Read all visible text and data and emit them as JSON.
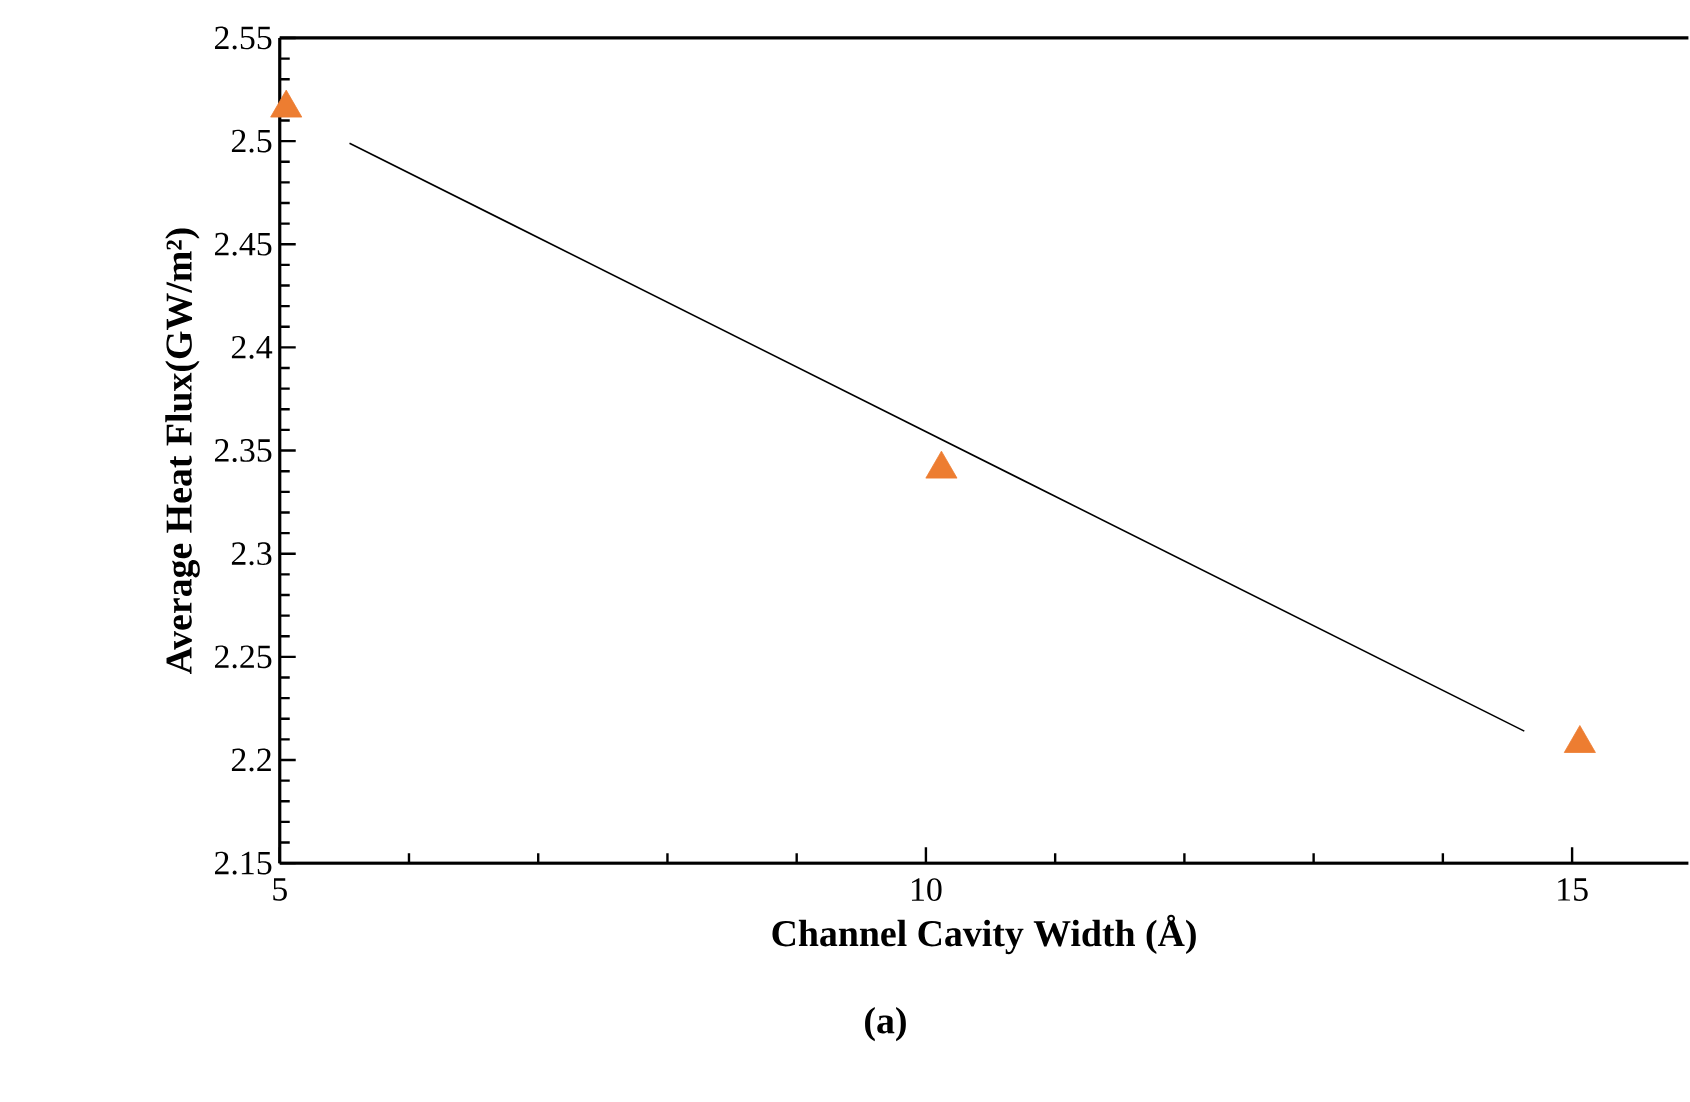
{
  "chart_data": {
    "type": "scatter",
    "xlabel": "Channel Cavity Width (Å)",
    "ylabel": "Average Heat Flux(GW/m²)",
    "series": [
      {
        "color": "#ed7d31",
        "marker": "triangle",
        "x": [
          5.05,
          10.12,
          15.06
        ],
        "values": [
          2.516,
          2.341,
          2.208
        ]
      },
      {
        "type": "line",
        "color": "#000000",
        "line_style": "solid",
        "x": [
          5.54,
          14.63
        ],
        "values": [
          2.499,
          2.214
        ]
      }
    ],
    "xlim": [
      5,
      15.9
    ],
    "ylim": [
      2.15,
      2.55
    ],
    "xticks": [
      5,
      10,
      15
    ],
    "yticks": [
      2.15,
      2.2,
      2.25,
      2.3,
      2.35,
      2.4,
      2.45,
      2.5,
      2.55
    ],
    "grid": false,
    "annotations": [
      "(a)"
    ]
  }
}
